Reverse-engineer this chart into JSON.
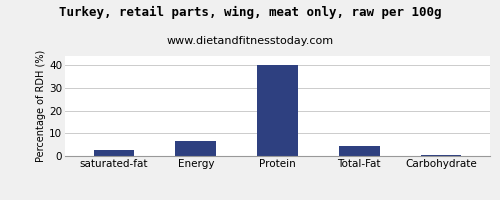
{
  "title": "Turkey, retail parts, wing, meat only, raw per 100g",
  "subtitle": "www.dietandfitnesstoday.com",
  "categories": [
    "saturated-fat",
    "Energy",
    "Protein",
    "Total-Fat",
    "Carbohydrate"
  ],
  "values": [
    2.5,
    6.5,
    40,
    4.5,
    0.3
  ],
  "bar_color": "#2e4080",
  "ylabel": "Percentage of RDH (%)",
  "ylim": [
    0,
    44
  ],
  "yticks": [
    0,
    10,
    20,
    30,
    40
  ],
  "background_color": "#f0f0f0",
  "plot_bg_color": "#ffffff",
  "title_fontsize": 9,
  "subtitle_fontsize": 8,
  "ylabel_fontsize": 7,
  "tick_fontsize": 7.5,
  "bar_width": 0.5
}
